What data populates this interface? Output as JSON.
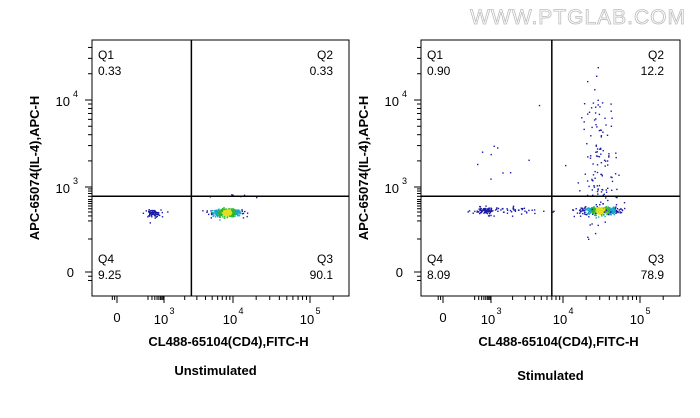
{
  "watermark": "WWW.PTGLAB.COM",
  "chart_data": [
    {
      "type": "scatter",
      "title": "Unstimulated",
      "xlabel": "CL488-65104(CD4),FITC-H",
      "ylabel": "APC-65074(IL-4),APC-H",
      "x_scale": "biexponential",
      "y_scale": "biexponential",
      "x_ticks": [
        {
          "label": "0",
          "value": 0
        },
        {
          "base": "10",
          "exp": "3",
          "value": 1000
        },
        {
          "base": "10",
          "exp": "4",
          "value": 10000
        },
        {
          "base": "10",
          "exp": "5",
          "value": 100000
        }
      ],
      "y_ticks": [
        {
          "label": "0",
          "value": 0
        },
        {
          "base": "10",
          "exp": "3",
          "value": 1000
        },
        {
          "base": "10",
          "exp": "4",
          "value": 10000
        }
      ],
      "gate": {
        "x": 2500,
        "y": 600
      },
      "quadrants": [
        {
          "name": "Q1",
          "value": "0.33"
        },
        {
          "name": "Q2",
          "value": "0.33"
        },
        {
          "name": "Q3",
          "value": "90.1"
        },
        {
          "name": "Q4",
          "value": "9.25"
        }
      ]
    },
    {
      "type": "scatter",
      "title": "Stimulated",
      "xlabel": "CL488-65104(CD4),FITC-H",
      "ylabel": "APC-65074(IL-4),APC-H",
      "x_scale": "biexponential",
      "y_scale": "biexponential",
      "x_ticks": [
        {
          "label": "0",
          "value": 0
        },
        {
          "base": "10",
          "exp": "3",
          "value": 1000
        },
        {
          "base": "10",
          "exp": "4",
          "value": 10000
        },
        {
          "base": "10",
          "exp": "5",
          "value": 100000
        }
      ],
      "y_ticks": [
        {
          "label": "0",
          "value": 0
        },
        {
          "base": "10",
          "exp": "3",
          "value": 1000
        },
        {
          "base": "10",
          "exp": "4",
          "value": 10000
        }
      ],
      "gate": {
        "x": 7000,
        "y": 600
      },
      "quadrants": [
        {
          "name": "Q1",
          "value": "0.90"
        },
        {
          "name": "Q2",
          "value": "12.2"
        },
        {
          "name": "Q3",
          "value": "78.9"
        },
        {
          "name": "Q4",
          "value": "8.09"
        }
      ]
    }
  ]
}
